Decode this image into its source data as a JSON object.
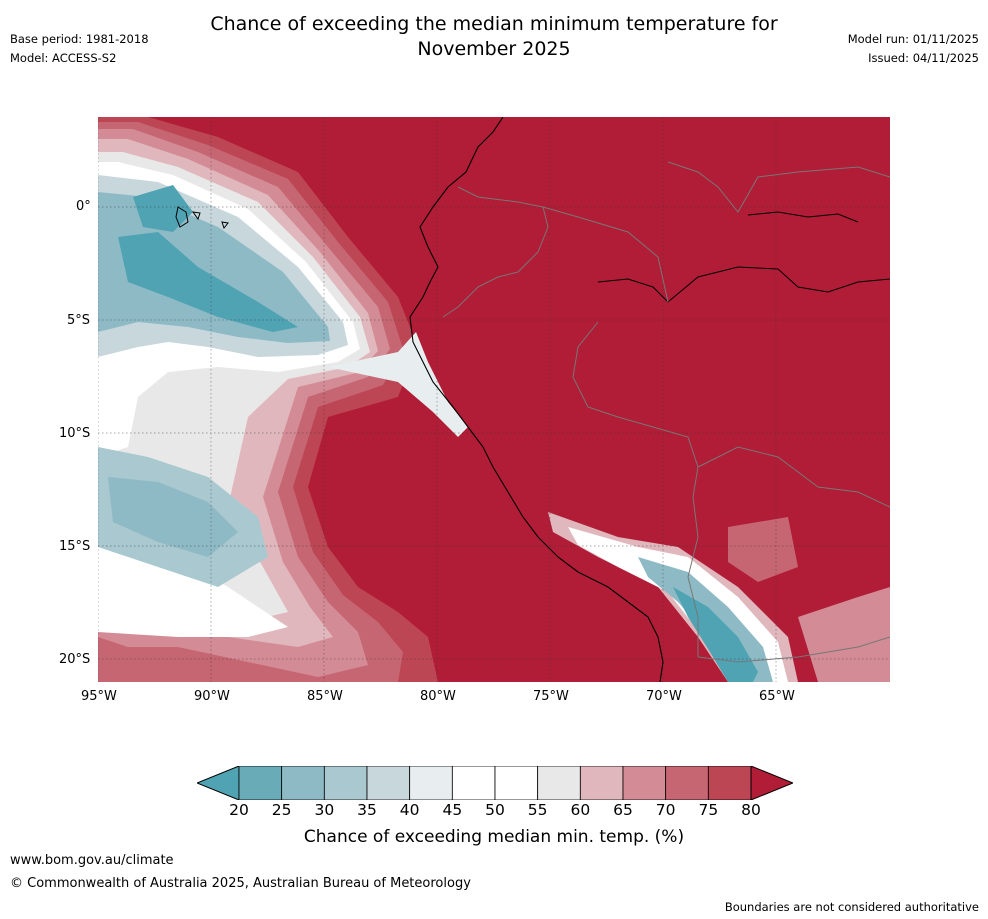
{
  "header": {
    "title_line1": "Chance of exceeding the median minimum temperature for",
    "title_line2": "November 2025",
    "base_period": "Base period: 1981-2018",
    "model": "Model: ACCESS-S2",
    "model_run": "Model run: 01/11/2025",
    "issued": "Issued: 04/11/2025"
  },
  "map": {
    "lat_labels": [
      "0°",
      "5°S",
      "10°S",
      "15°S",
      "20°S"
    ],
    "lon_labels": [
      "95°W",
      "90°W",
      "85°W",
      "80°W",
      "75°W",
      "70°W",
      "65°W"
    ]
  },
  "colorbar": {
    "title": "Chance of exceeding median min. temp. (%)",
    "ticks": [
      "20",
      "25",
      "30",
      "35",
      "40",
      "45",
      "50",
      "55",
      "60",
      "65",
      "70",
      "75",
      "80"
    ],
    "colors": [
      "#4fa3b3",
      "#6aabb8",
      "#8ebac6",
      "#a9c8cf",
      "#c7d7dc",
      "#e8eef0",
      "#ffffff",
      "#ffffff",
      "#e8e8e8",
      "#e0b7bd",
      "#d38c96",
      "#c76673",
      "#bd4655",
      "#b11c36"
    ]
  },
  "footer": {
    "website": "www.bom.gov.au/climate",
    "copyright": "© Commonwealth of Australia 2025, Australian Bureau of Meteorology",
    "disclaimer": "Boundaries are not considered authoritative"
  }
}
